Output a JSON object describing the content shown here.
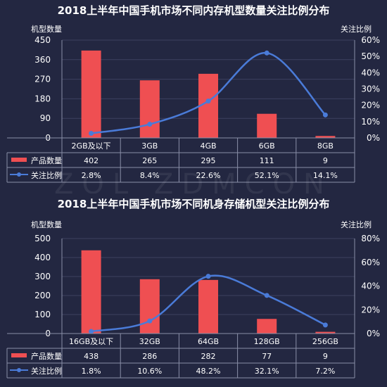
{
  "colors": {
    "background": "#232741",
    "bar": "#ef4f52",
    "line": "#4a7bd8",
    "grid": "#3c4160",
    "text": "#ffffff"
  },
  "watermark": "ZOL ZDMCON",
  "chart_data": [
    {
      "type": "bar",
      "title": "2018上半年中国手机市场不同内存机型数量关注比例分布",
      "ylabel": "机型数量",
      "y2label": "关注比例",
      "categories": [
        "2GB及以下",
        "3GB",
        "4GB",
        "6GB",
        "8GB"
      ],
      "ylim": [
        0,
        450
      ],
      "yticks": [
        "0",
        "90",
        "180",
        "270",
        "360",
        "450"
      ],
      "y2lim": [
        0,
        60
      ],
      "y2ticks": [
        "0%",
        "10%",
        "20%",
        "30%",
        "40%",
        "50%",
        "60%"
      ],
      "series": [
        {
          "name": "产品数量",
          "kind": "bar",
          "values": [
            402,
            265,
            295,
            111,
            9
          ],
          "labels": [
            "402",
            "265",
            "295",
            "111",
            "9"
          ]
        },
        {
          "name": "关注比例",
          "kind": "line",
          "values": [
            2.8,
            8.4,
            22.6,
            52.1,
            14.1
          ],
          "labels": [
            "2.8%",
            "8.4%",
            "22.6%",
            "52.1%",
            "14.1%"
          ]
        }
      ],
      "grid": true,
      "legend": "table-rows"
    },
    {
      "type": "bar",
      "title": "2018上半年中国手机市场不同机身存储机型关注比例分布",
      "ylabel": "机型数量",
      "y2label": "关注比例",
      "categories": [
        "16GB及以下",
        "32GB",
        "64GB",
        "128GB",
        "256GB"
      ],
      "ylim": [
        0,
        500
      ],
      "yticks": [
        "0",
        "100",
        "200",
        "300",
        "400",
        "500"
      ],
      "y2lim": [
        0,
        80
      ],
      "y2ticks": [
        "0%",
        "20%",
        "40%",
        "60%",
        "80%"
      ],
      "series": [
        {
          "name": "产品数量",
          "kind": "bar",
          "values": [
            438,
            286,
            282,
            77,
            9
          ],
          "labels": [
            "438",
            "286",
            "282",
            "77",
            "9"
          ]
        },
        {
          "name": "关注比例",
          "kind": "line",
          "values": [
            1.8,
            10.6,
            48.2,
            32.1,
            7.2
          ],
          "labels": [
            "1.8%",
            "10.6%",
            "48.2%",
            "32.1%",
            "7.2%"
          ]
        }
      ],
      "grid": true,
      "legend": "table-rows"
    }
  ]
}
